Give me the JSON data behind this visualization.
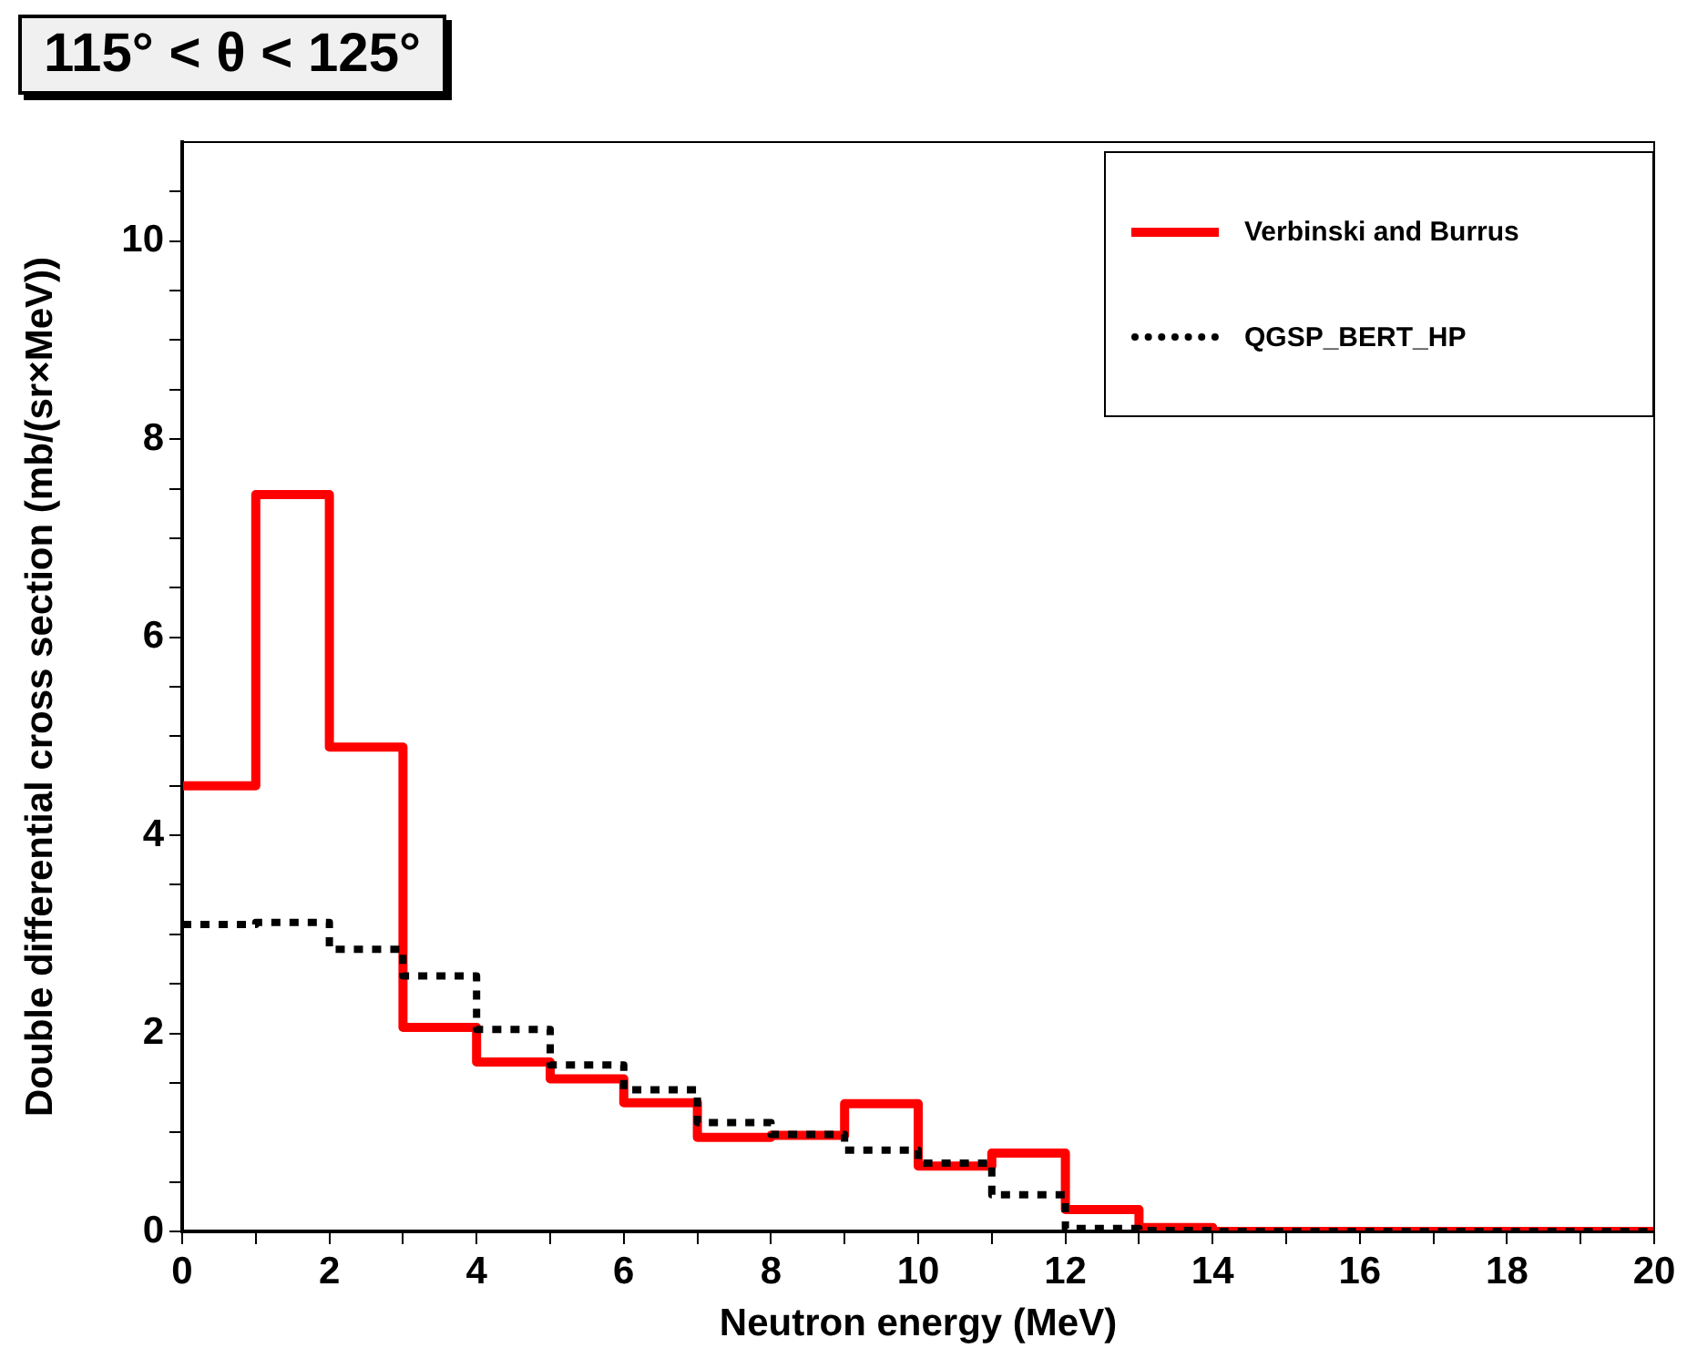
{
  "chart_data": {
    "type": "histogram",
    "title": "115° < θ < 125°",
    "xlabel": "Neutron energy (MeV)",
    "ylabel": "Double differential cross section (mb/(sr×MeV))",
    "bins": [
      0,
      1,
      2,
      3,
      4,
      5,
      6,
      7,
      8,
      9,
      10,
      11,
      12,
      13,
      14,
      15,
      16,
      17,
      18,
      19,
      20
    ],
    "series": [
      {
        "name": "Verbinski and Burrus",
        "color": "#ff0000",
        "line_style": "solid",
        "values": [
          4.5,
          7.44,
          4.89,
          2.06,
          1.71,
          1.54,
          1.3,
          0.95,
          0.97,
          1.29,
          0.66,
          0.79,
          0.22,
          0.04,
          0,
          0,
          0,
          0,
          0,
          0
        ]
      },
      {
        "name": "QGSP_BERT_HP",
        "color": "#000000",
        "line_style": "dotted",
        "values": [
          3.1,
          3.12,
          2.85,
          2.58,
          2.04,
          1.68,
          1.43,
          1.1,
          0.98,
          0.82,
          0.69,
          0.37,
          0.03,
          0.01,
          0,
          0,
          0,
          0,
          0,
          0
        ]
      }
    ],
    "xlim": [
      0,
      20
    ],
    "xticks": [
      0,
      {
        "value": 1,
        "label": null
      },
      2,
      {
        "value": 3,
        "label": null
      },
      4,
      {
        "value": 5,
        "label": null
      },
      6,
      {
        "value": 7,
        "label": null
      },
      8,
      {
        "value": 9,
        "label": null
      },
      10,
      {
        "value": 11,
        "label": null
      },
      12,
      {
        "value": 13,
        "label": null
      },
      14,
      {
        "value": 15,
        "label": null
      },
      16,
      {
        "value": 17,
        "label": null
      },
      18,
      {
        "value": 19,
        "label": null
      },
      20
    ],
    "ylim": [
      0,
      11
    ],
    "yticks": [
      0,
      {
        "value": 0.5,
        "label": null
      },
      {
        "value": 1,
        "label": null
      },
      {
        "value": 1.5,
        "label": null
      },
      2,
      {
        "value": 2.5,
        "label": null
      },
      {
        "value": 3,
        "label": null
      },
      {
        "value": 3.5,
        "label": null
      },
      4,
      {
        "value": 4.5,
        "label": null
      },
      {
        "value": 5,
        "label": null
      },
      {
        "value": 5.5,
        "label": null
      },
      6,
      {
        "value": 6.5,
        "label": null
      },
      {
        "value": 7,
        "label": null
      },
      {
        "value": 7.5,
        "label": null
      },
      8,
      {
        "value": 8.5,
        "label": null
      },
      {
        "value": 9,
        "label": null
      },
      {
        "value": 9.5,
        "label": null
      },
      10,
      {
        "value": 10.5,
        "label": null
      }
    ],
    "legend": "top right",
    "marker": "none",
    "grid": false
  }
}
